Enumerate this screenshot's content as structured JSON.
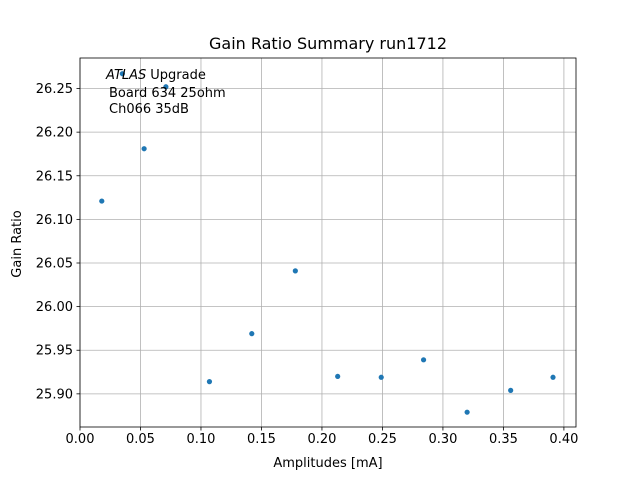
{
  "chart_data": {
    "type": "scatter",
    "title": "Gain Ratio Summary run1712",
    "xlabel": "Amplitudes [mA]",
    "ylabel": "Gain Ratio",
    "xlim": [
      0.0,
      0.41
    ],
    "ylim": [
      25.862,
      26.285
    ],
    "xticks": [
      "0.00",
      "0.05",
      "0.10",
      "0.15",
      "0.20",
      "0.25",
      "0.30",
      "0.35",
      "0.40"
    ],
    "yticks": [
      "25.90",
      "25.95",
      "26.00",
      "26.05",
      "26.10",
      "26.15",
      "26.20",
      "26.25"
    ],
    "grid": true,
    "annotation": {
      "atlas": "ATLAS",
      "upgrade": "Upgrade",
      "line2": "Board 634 25ohm",
      "line3": "Ch066 35dB"
    },
    "marker_color": "#1f77b4",
    "points": [
      {
        "x": 0.018,
        "y": 26.121
      },
      {
        "x": 0.035,
        "y": 26.267
      },
      {
        "x": 0.053,
        "y": 26.181
      },
      {
        "x": 0.071,
        "y": 26.252
      },
      {
        "x": 0.107,
        "y": 25.914
      },
      {
        "x": 0.142,
        "y": 25.969
      },
      {
        "x": 0.178,
        "y": 26.041
      },
      {
        "x": 0.213,
        "y": 25.92
      },
      {
        "x": 0.249,
        "y": 25.919
      },
      {
        "x": 0.284,
        "y": 25.939
      },
      {
        "x": 0.32,
        "y": 25.879
      },
      {
        "x": 0.356,
        "y": 25.904
      },
      {
        "x": 0.391,
        "y": 25.919
      }
    ]
  }
}
